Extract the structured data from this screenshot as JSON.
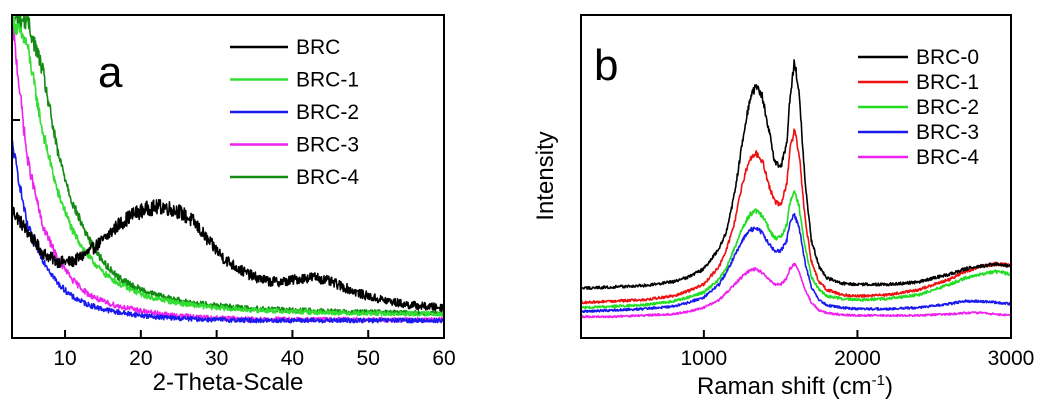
{
  "chart_data": [
    {
      "type": "line",
      "panel_label": "a",
      "xlabel": "2-Theta-Scale",
      "ylabel": "",
      "xlim": [
        3,
        60
      ],
      "ylim": [
        0,
        100
      ],
      "xticks": [
        10,
        20,
        30,
        40,
        50,
        60
      ],
      "grid": false,
      "legend_position": "top-right",
      "x": [
        3,
        5,
        7,
        9,
        11,
        13,
        15,
        17,
        19,
        21,
        23,
        25,
        27,
        29,
        31,
        33,
        35,
        37,
        39,
        41,
        43,
        45,
        47,
        49,
        51,
        53,
        55,
        57,
        60
      ],
      "series": [
        {
          "name": "BRC",
          "color": "#000000",
          "noise": 2.2,
          "values": [
            38,
            31,
            24,
            21,
            21,
            24,
            28,
            33,
            36.5,
            38.5,
            39,
            37.5,
            34,
            27.5,
            22,
            18.5,
            16,
            14.5,
            14.5,
            15.5,
            16,
            14.5,
            12.5,
            10.5,
            9,
            8,
            7,
            6.5,
            6
          ]
        },
        {
          "name": "BRC-1",
          "color": "#33dd33",
          "noise": 1.3,
          "values": [
            100,
            92,
            64,
            44,
            31,
            23,
            17.5,
            14,
            11.5,
            9.5,
            8.5,
            7.5,
            6.8,
            6.2,
            5.8,
            5.5,
            5.2,
            5,
            4.8,
            4.6,
            4.5,
            4.4,
            4.3,
            4.2,
            4.1,
            4,
            4,
            4,
            4
          ]
        },
        {
          "name": "BRC-2",
          "color": "#1a1aee",
          "noise": 1.4,
          "values": [
            60,
            33,
            22,
            14,
            9.5,
            7,
            5.5,
            4.5,
            3.8,
            3.2,
            2.8,
            2.5,
            2.3,
            2.1,
            2,
            1.9,
            1.8,
            1.8,
            1.8,
            1.8,
            1.8,
            1.8,
            1.8,
            1.8,
            1.8,
            1.8,
            1.8,
            1.8,
            1.8
          ]
        },
        {
          "name": "BRC-3",
          "color": "#ee22ee",
          "noise": 1.4,
          "values": [
            100,
            55,
            33,
            22,
            15,
            10.5,
            8,
            6.5,
            5.5,
            4.5,
            3.8,
            3.3,
            3,
            2.7,
            2.5,
            2.4,
            2.3,
            2.2,
            2.2,
            2.1,
            2.1,
            2.1,
            2.1,
            2,
            2,
            2,
            2,
            2,
            2
          ]
        },
        {
          "name": "BRC-4",
          "color": "#138a13",
          "noise": 1.4,
          "values": [
            100,
            100,
            84,
            57,
            40,
            29,
            21,
            16,
            13,
            11,
            9.5,
            8.5,
            7.5,
            7,
            6.5,
            6,
            5.7,
            5.5,
            5.3,
            5.1,
            5,
            4.8,
            4.7,
            4.6,
            4.5,
            4.4,
            4.3,
            4.2,
            4
          ]
        }
      ]
    },
    {
      "type": "line",
      "panel_label": "b",
      "xlabel": "Raman shift (cm",
      "xlabel_superscript": "-1",
      "xlabel_suffix": ")",
      "ylabel": "Intensity",
      "xlim": [
        200,
        3000
      ],
      "ylim": [
        0,
        100
      ],
      "xticks": [
        1000,
        2000,
        3000
      ],
      "grid": false,
      "legend_position": "top-right",
      "x": [
        200,
        400,
        600,
        800,
        900,
        1000,
        1100,
        1150,
        1200,
        1250,
        1300,
        1340,
        1380,
        1420,
        1460,
        1500,
        1540,
        1560,
        1590,
        1620,
        1660,
        1700,
        1750,
        1800,
        1900,
        2000,
        2200,
        2400,
        2600,
        2700,
        2800,
        2900,
        3000
      ],
      "series": [
        {
          "name": "BRC-0",
          "color": "#000000",
          "noise": 0.8,
          "values": [
            11.5,
            12,
            12.5,
            14,
            16,
            19,
            27,
            34,
            48,
            68,
            85,
            90,
            86,
            74,
            61,
            58,
            68,
            85,
            100,
            88,
            52,
            30,
            20,
            15.5,
            13.5,
            13,
            13,
            14,
            17,
            19,
            20,
            21,
            20
          ]
        },
        {
          "name": "BRC-1",
          "color": "#ee1111",
          "noise": 0.8,
          "values": [
            6,
            6.5,
            7,
            8.5,
            10.5,
            13,
            20,
            27,
            37,
            52,
            62,
            64,
            61,
            52,
            45,
            44,
            52,
            65,
            73,
            64,
            38,
            22,
            14,
            11,
            9,
            8.5,
            9,
            11,
            15,
            18,
            20,
            21,
            20.5
          ]
        },
        {
          "name": "BRC-2",
          "color": "#22dd22",
          "noise": 0.8,
          "values": [
            4,
            4.5,
            5,
            6.5,
            8,
            10,
            15,
            20,
            27,
            35,
            40,
            41.5,
            39.5,
            35,
            31,
            31,
            36,
            45,
            49,
            43,
            27,
            16,
            11,
            8.5,
            7.5,
            7,
            7.5,
            9,
            13,
            15.5,
            17,
            18,
            17
          ]
        },
        {
          "name": "BRC-3",
          "color": "#1a1aee",
          "noise": 0.8,
          "values": [
            2.5,
            3,
            3.5,
            4.5,
            6,
            8,
            13,
            18,
            24,
            30,
            34,
            35,
            33,
            29,
            26,
            26,
            30,
            37,
            40,
            35,
            21,
            12,
            7,
            5,
            4,
            3.5,
            3.5,
            4,
            5.5,
            6.5,
            6.5,
            6,
            5.5
          ]
        },
        {
          "name": "BRC-4",
          "color": "#ee22ee",
          "noise": 0.7,
          "values": [
            0.5,
            0.5,
            1,
            1.5,
            2.5,
            4,
            7,
            10,
            13,
            16,
            18.5,
            19,
            17.5,
            15,
            13,
            13,
            15.5,
            19,
            21,
            18,
            11,
            6,
            3,
            2,
            1.2,
            1,
            1,
            1,
            1.5,
            2,
            2,
            1.5,
            1
          ]
        }
      ]
    }
  ]
}
